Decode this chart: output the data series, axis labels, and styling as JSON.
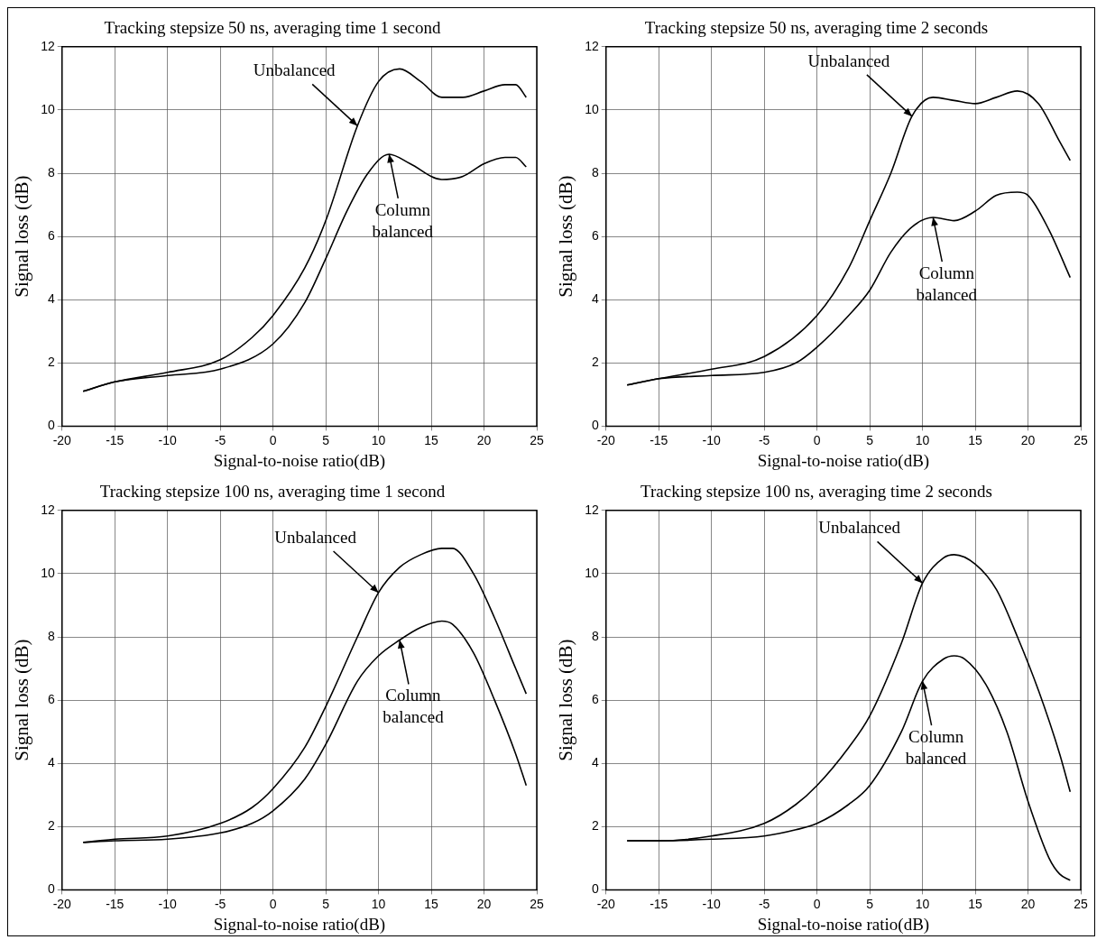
{
  "chart_data": [
    {
      "type": "line",
      "title": "Tracking stepsize 50 ns, averaging time 1 second",
      "xlabel": "Signal-to-noise ratio(dB)",
      "ylabel": "Signal loss (dB)",
      "xlim": [
        -20,
        25
      ],
      "xticks": [
        -20,
        -15,
        -10,
        -5,
        0,
        5,
        10,
        15,
        20,
        25
      ],
      "ylim": [
        0,
        12
      ],
      "yticks": [
        0,
        2,
        4,
        6,
        8,
        10,
        12
      ],
      "grid": true,
      "legend": false,
      "marker": "none",
      "line_style": "solid",
      "series": [
        {
          "color": "#000000",
          "x": [
            -18,
            -15,
            -10,
            -5,
            -2,
            0,
            3,
            5,
            8,
            10,
            12,
            14,
            16,
            18,
            20,
            22,
            23,
            24
          ],
          "values": [
            1.1,
            1.4,
            1.7,
            2.1,
            2.8,
            3.5,
            5.0,
            6.5,
            9.5,
            10.9,
            11.3,
            10.9,
            10.4,
            10.4,
            10.6,
            10.8,
            10.8,
            10.4
          ]
        },
        {
          "color": "#000000",
          "x": [
            -18,
            -15,
            -10,
            -5,
            0,
            3,
            5,
            7,
            9,
            11,
            13,
            16,
            18,
            20,
            22,
            23,
            24
          ],
          "values": [
            1.1,
            1.4,
            1.6,
            1.8,
            2.6,
            3.9,
            5.3,
            6.8,
            8.0,
            8.6,
            8.3,
            7.8,
            7.9,
            8.3,
            8.5,
            8.5,
            8.2
          ]
        }
      ],
      "annotations": [
        {
          "text": "Unbalanced",
          "x": 8,
          "y": 9.5
        },
        {
          "text": "Column balanced",
          "x": 11,
          "y": 8.6
        }
      ]
    },
    {
      "type": "line",
      "title": "Tracking stepsize 50 ns, averaging time 2 seconds",
      "xlabel": "Signal-to-noise ratio(dB)",
      "ylabel": "Signal loss (dB)",
      "xlim": [
        -20,
        25
      ],
      "xticks": [
        -20,
        -15,
        -10,
        -5,
        0,
        5,
        10,
        15,
        20,
        25
      ],
      "ylim": [
        0,
        12
      ],
      "yticks": [
        0,
        2,
        4,
        6,
        8,
        10,
        12
      ],
      "grid": true,
      "legend": false,
      "marker": "none",
      "line_style": "solid",
      "series": [
        {
          "color": "#000000",
          "x": [
            -18,
            -15,
            -10,
            -5,
            0,
            3,
            5,
            7,
            9,
            11,
            13,
            15,
            17,
            19,
            21,
            23,
            24
          ],
          "values": [
            1.3,
            1.5,
            1.8,
            2.2,
            3.5,
            5.0,
            6.5,
            8.0,
            9.8,
            10.4,
            10.3,
            10.2,
            10.4,
            10.6,
            10.2,
            9.0,
            8.4
          ]
        },
        {
          "color": "#000000",
          "x": [
            -18,
            -15,
            -10,
            -5,
            -2,
            0,
            3,
            5,
            7,
            9,
            11,
            13,
            15,
            17,
            19,
            20,
            22,
            24
          ],
          "values": [
            1.3,
            1.5,
            1.6,
            1.7,
            2.0,
            2.5,
            3.5,
            4.3,
            5.5,
            6.3,
            6.6,
            6.5,
            6.8,
            7.3,
            7.4,
            7.3,
            6.2,
            4.7
          ]
        }
      ],
      "annotations": [
        {
          "text": "Unbalanced",
          "x": 9,
          "y": 9.8
        },
        {
          "text": "Column balanced",
          "x": 11,
          "y": 6.6
        }
      ]
    },
    {
      "type": "line",
      "title": "Tracking stepsize 100 ns, averaging time 1 second",
      "xlabel": "Signal-to-noise ratio(dB)",
      "ylabel": "Signal loss (dB)",
      "xlim": [
        -20,
        25
      ],
      "xticks": [
        -20,
        -15,
        -10,
        -5,
        0,
        5,
        10,
        15,
        20,
        25
      ],
      "ylim": [
        0,
        12
      ],
      "yticks": [
        0,
        2,
        4,
        6,
        8,
        10,
        12
      ],
      "grid": true,
      "legend": false,
      "marker": "none",
      "line_style": "solid",
      "series": [
        {
          "color": "#000000",
          "x": [
            -18,
            -15,
            -10,
            -5,
            -2,
            0,
            3,
            5,
            8,
            10,
            12,
            14,
            16,
            17,
            19,
            21,
            23,
            24
          ],
          "values": [
            1.5,
            1.6,
            1.7,
            2.1,
            2.6,
            3.2,
            4.5,
            5.8,
            8.0,
            9.4,
            10.2,
            10.6,
            10.8,
            10.8,
            10.0,
            8.6,
            7.0,
            6.2
          ]
        },
        {
          "color": "#000000",
          "x": [
            -18,
            -15,
            -10,
            -5,
            -2,
            0,
            3,
            5,
            8,
            10,
            12,
            14,
            16,
            17,
            19,
            21,
            23,
            24
          ],
          "values": [
            1.5,
            1.55,
            1.6,
            1.8,
            2.1,
            2.5,
            3.5,
            4.6,
            6.6,
            7.4,
            7.9,
            8.3,
            8.5,
            8.4,
            7.5,
            6.0,
            4.3,
            3.3
          ]
        }
      ],
      "annotations": [
        {
          "text": "Unbalanced",
          "x": 10,
          "y": 9.4
        },
        {
          "text": "Column balanced",
          "x": 12,
          "y": 7.9
        }
      ]
    },
    {
      "type": "line",
      "title": "Tracking stepsize 100 ns, averaging time 2 seconds",
      "xlabel": "Signal-to-noise ratio(dB)",
      "ylabel": "Signal loss (dB)",
      "xlim": [
        -20,
        25
      ],
      "xticks": [
        -20,
        -15,
        -10,
        -5,
        0,
        5,
        10,
        15,
        20,
        25
      ],
      "ylim": [
        0,
        12
      ],
      "yticks": [
        0,
        2,
        4,
        6,
        8,
        10,
        12
      ],
      "grid": true,
      "legend": false,
      "marker": "none",
      "line_style": "solid",
      "series": [
        {
          "color": "#000000",
          "x": [
            -18,
            -15,
            -10,
            -5,
            -2,
            0,
            3,
            5,
            8,
            10,
            12,
            13,
            15,
            17,
            19,
            21,
            23,
            24
          ],
          "values": [
            1.55,
            1.55,
            1.7,
            2.1,
            2.7,
            3.3,
            4.5,
            5.5,
            7.8,
            9.7,
            10.5,
            10.6,
            10.3,
            9.5,
            8.0,
            6.3,
            4.3,
            3.1
          ]
        },
        {
          "color": "#000000",
          "x": [
            -18,
            -15,
            -10,
            -5,
            -2,
            0,
            3,
            5,
            8,
            10,
            12,
            13,
            14,
            16,
            18,
            20,
            22,
            23,
            24
          ],
          "values": [
            1.55,
            1.55,
            1.6,
            1.7,
            1.9,
            2.1,
            2.7,
            3.3,
            5.0,
            6.6,
            7.3,
            7.4,
            7.3,
            6.5,
            5.0,
            2.8,
            1.0,
            0.5,
            0.3
          ]
        }
      ],
      "annotations": [
        {
          "text": "Unbalanced",
          "x": 10,
          "y": 9.7
        },
        {
          "text": "Column balanced",
          "x": 10,
          "y": 6.6
        }
      ]
    }
  ]
}
